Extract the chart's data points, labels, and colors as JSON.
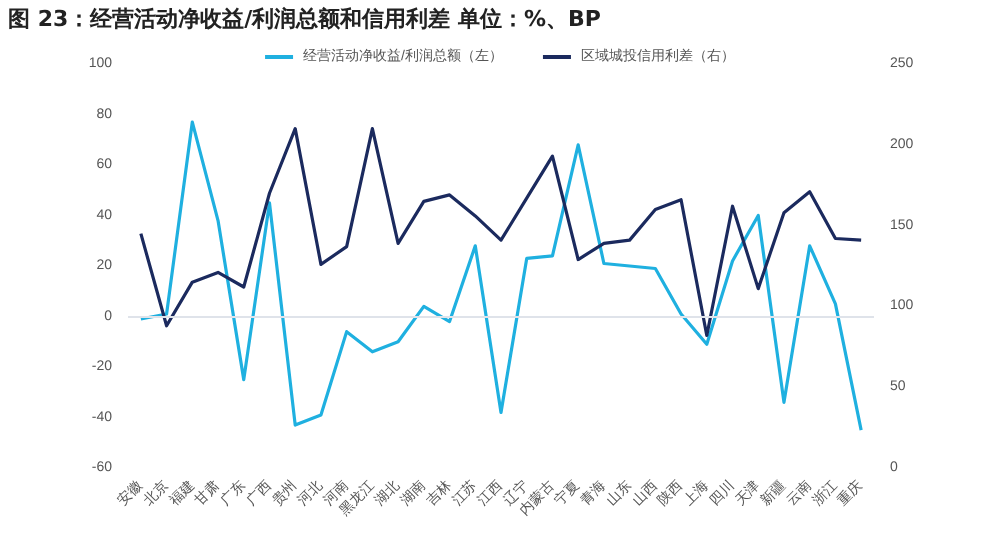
{
  "chart_data": {
    "type": "line",
    "title": "图 23：经营活动净收益/利润总额和信用利差 单位：%、BP",
    "categories": [
      "安徽",
      "北京",
      "福建",
      "甘肃",
      "广东",
      "广西",
      "贵州",
      "河北",
      "河南",
      "黑龙江",
      "湖北",
      "湖南",
      "吉林",
      "江苏",
      "江西",
      "辽宁",
      "内蒙古",
      "宁夏",
      "青海",
      "山东",
      "山西",
      "陕西",
      "上海",
      "四川",
      "天津",
      "新疆",
      "云南",
      "浙江",
      "重庆"
    ],
    "series": [
      {
        "name": "经营活动净收益/利润总额（左）",
        "color": "#1fb0e0",
        "values": [
          -1,
          1,
          77,
          38,
          -25,
          45,
          -43,
          -39,
          -6,
          -14,
          -10,
          4,
          -2,
          28,
          -38,
          23,
          24,
          68,
          21,
          20,
          19,
          1,
          -11,
          22,
          40,
          -34,
          28,
          5,
          -45
        ]
      },
      {
        "name": "区域城投信用利差（右）",
        "color": "#1b2a5e",
        "axis": "y2",
        "values": [
          145,
          88,
          115,
          121,
          112,
          170,
          210,
          126,
          137,
          210,
          139,
          165,
          169,
          156,
          141,
          167,
          193,
          129,
          139,
          141,
          160,
          166,
          82,
          162,
          111,
          158,
          171,
          142,
          141
        ]
      }
    ],
    "ylim": [
      -60,
      100
    ],
    "yticks": [
      -60,
      -40,
      -20,
      0,
      20,
      40,
      60,
      80,
      100
    ],
    "y2lim": [
      0,
      250
    ],
    "y2ticks": [
      0,
      50,
      100,
      150,
      200,
      250
    ],
    "ref_lines": [
      {
        "axis": "y",
        "value": 0,
        "color": "#dfe3ea"
      }
    ],
    "grid": false,
    "legend": "top",
    "marker": "none",
    "line_style": "solid"
  }
}
